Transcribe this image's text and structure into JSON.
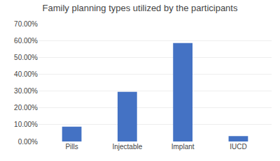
{
  "chart_data": {
    "type": "bar",
    "title": "Family planning types utilized by the participants",
    "categories": [
      "Pills",
      "Injectable",
      "Implant",
      "IUCD"
    ],
    "values": [
      0.088,
      0.295,
      0.585,
      0.032
    ],
    "color": "#4472C4",
    "ylim": [
      0,
      0.7
    ],
    "yticks": [
      {
        "value": 0.0,
        "label": "0.00%"
      },
      {
        "value": 0.1,
        "label": "10.00%"
      },
      {
        "value": 0.2,
        "label": "20.00%"
      },
      {
        "value": 0.3,
        "label": "30.00%"
      },
      {
        "value": 0.4,
        "label": "40.00%"
      },
      {
        "value": 0.5,
        "label": "50.00%"
      },
      {
        "value": 0.6,
        "label": "60.00%"
      },
      {
        "value": 0.7,
        "label": "70.00%"
      }
    ],
    "grid": true
  }
}
